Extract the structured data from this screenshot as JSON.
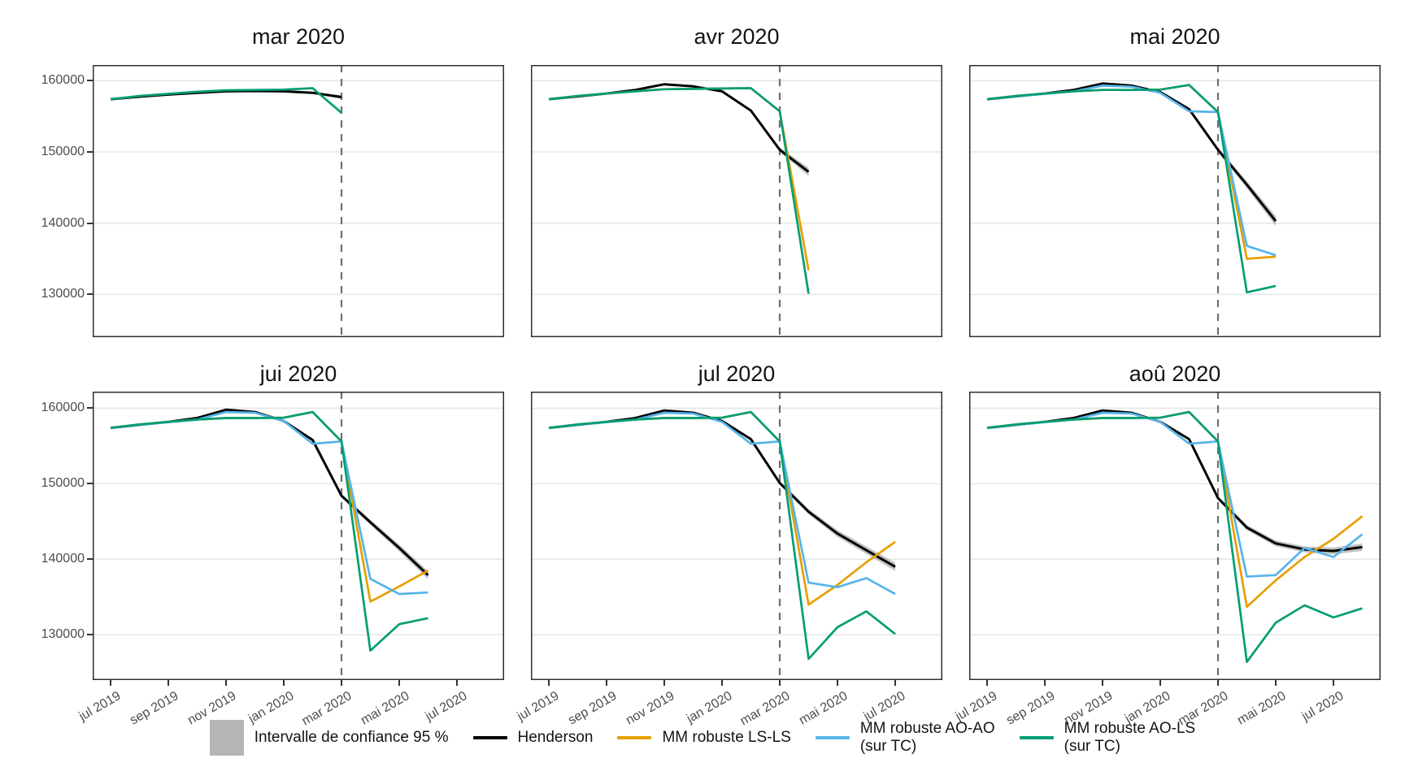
{
  "figure": {
    "y_domain": [
      124000,
      162200
    ],
    "y_axis": {
      "ticks": [
        "160000",
        "150000",
        "140000",
        "130000"
      ],
      "tick_values": [
        160000,
        150000,
        140000,
        130000
      ]
    },
    "x_axis": {
      "tick_labels": [
        "jul 2019",
        "sep 2019",
        "nov 2019",
        "jan 2020",
        "mar 2020",
        "mai 2020",
        "jul 2020"
      ],
      "tick_month_indices": [
        0,
        2,
        4,
        6,
        8,
        10,
        12
      ]
    },
    "reference_line_month_index": 8
  },
  "series_meta": {
    "ci": {
      "label": "Intervalle de confiance 95 %",
      "color": "#b5b5b5"
    },
    "henderson": {
      "label": "Henderson",
      "color": "#000000"
    },
    "ls_ls": {
      "label": "MM robuste LS-LS",
      "color": "#E69F00"
    },
    "ao_ao": {
      "label": "MM robuste AO-AO",
      "label2": "(sur TC)",
      "color": "#56B4E9"
    },
    "ao_ls": {
      "label": "MM robuste AO-LS",
      "label2": "(sur TC)",
      "color": "#009E73"
    }
  },
  "legend": {
    "items": [
      {
        "id": "ci",
        "type": "square",
        "label": "Intervalle de confiance 95 %"
      },
      {
        "id": "henderson",
        "type": "line",
        "label": "Henderson"
      },
      {
        "id": "ls_ls",
        "type": "line",
        "label": "MM robuste LS-LS"
      },
      {
        "id": "ao_ao",
        "type": "line",
        "label": "MM robuste AO-AO",
        "label2": "(sur TC)"
      },
      {
        "id": "ao_ls",
        "type": "line",
        "label": "MM robuste AO-LS",
        "label2": "(sur TC)"
      }
    ]
  },
  "chart_data": [
    {
      "type": "line",
      "title": "mar 2020",
      "x_start_label": "jul 2019",
      "series": {
        "henderson": [
          157400,
          157750,
          158050,
          158300,
          158500,
          158550,
          158500,
          158300,
          157700
        ],
        "ci_half": [
          0,
          0,
          0,
          0,
          0,
          0,
          0,
          100,
          250
        ],
        "ls_ls": null,
        "ao_ao": null,
        "ao_ls": [
          157400,
          157850,
          158150,
          158450,
          158650,
          158700,
          158750,
          158950,
          155500
        ]
      }
    },
    {
      "type": "line",
      "title": "avr 2020",
      "x_start_label": "jul 2019",
      "series": {
        "henderson": [
          157400,
          157800,
          158200,
          158700,
          159500,
          159200,
          158500,
          155800,
          150300,
          147200
        ],
        "ci_half": [
          0,
          0,
          0,
          0,
          0,
          0,
          0,
          150,
          300,
          600
        ],
        "ls_ls": [
          157400,
          157850,
          158200,
          158500,
          158800,
          158850,
          158900,
          158950,
          155700,
          133400
        ],
        "ao_ao": null,
        "ao_ls": [
          157400,
          157850,
          158200,
          158500,
          158800,
          158850,
          158900,
          158950,
          155700,
          130100
        ]
      }
    },
    {
      "type": "line",
      "title": "mai 2020",
      "x_start_label": "jul 2019",
      "series": {
        "henderson": [
          157400,
          157800,
          158200,
          158700,
          159600,
          159300,
          158400,
          156000,
          150300,
          145400,
          140300
        ],
        "ci_half": [
          0,
          0,
          0,
          0,
          0,
          0,
          0,
          150,
          300,
          500,
          700
        ],
        "ls_ls": [
          157400,
          157850,
          158200,
          158500,
          158700,
          158700,
          158750,
          159400,
          155600,
          135000,
          135300
        ],
        "ao_ao": [
          157400,
          157800,
          158150,
          158500,
          159300,
          159150,
          158300,
          155700,
          155600,
          136800,
          135500
        ],
        "ao_ls": [
          157400,
          157850,
          158200,
          158500,
          158700,
          158700,
          158750,
          159400,
          155600,
          130300,
          131200
        ]
      }
    },
    {
      "type": "line",
      "title": "jui 2020",
      "x_start_label": "jul 2019",
      "series": {
        "henderson": [
          157400,
          157800,
          158200,
          158700,
          159800,
          159500,
          158300,
          155800,
          148400,
          144900,
          141500,
          137900
        ],
        "ci_half": [
          0,
          0,
          0,
          0,
          0,
          0,
          0,
          150,
          250,
          350,
          450,
          550
        ],
        "ls_ls": [
          157400,
          157850,
          158200,
          158500,
          158700,
          158700,
          158750,
          159500,
          155600,
          134400,
          136400,
          138500
        ],
        "ao_ao": [
          157400,
          157800,
          158150,
          158500,
          159500,
          159400,
          158300,
          155300,
          155600,
          137400,
          135400,
          135600
        ],
        "ao_ls": [
          157400,
          157850,
          158200,
          158500,
          158700,
          158700,
          158750,
          159500,
          155600,
          127900,
          131400,
          132200
        ]
      }
    },
    {
      "type": "line",
      "title": "jul 2020",
      "x_start_label": "jul 2019",
      "series": {
        "henderson": [
          157400,
          157800,
          158200,
          158700,
          159700,
          159400,
          158300,
          155900,
          150100,
          146300,
          143400,
          141200,
          139000
        ],
        "ci_half": [
          0,
          0,
          0,
          0,
          0,
          0,
          0,
          150,
          250,
          350,
          450,
          500,
          550
        ],
        "ls_ls": [
          157400,
          157850,
          158200,
          158500,
          158700,
          158700,
          158750,
          159500,
          155600,
          134000,
          136600,
          139600,
          142300
        ],
        "ao_ao": [
          157400,
          157800,
          158150,
          158500,
          159400,
          159300,
          158200,
          155300,
          155600,
          136900,
          136300,
          137500,
          135400
        ],
        "ao_ls": [
          157400,
          157850,
          158200,
          158500,
          158700,
          158700,
          158750,
          159500,
          155600,
          126800,
          131000,
          133100,
          130100
        ]
      }
    },
    {
      "type": "line",
      "title": "aoû 2020",
      "x_start_label": "jul 2019",
      "series": {
        "henderson": [
          157400,
          157800,
          158200,
          158700,
          159700,
          159400,
          158200,
          155900,
          148100,
          144200,
          142100,
          141300,
          141100,
          141600
        ],
        "ci_half": [
          0,
          0,
          0,
          0,
          0,
          0,
          0,
          150,
          250,
          350,
          400,
          400,
          450,
          500
        ],
        "ls_ls": [
          157400,
          157850,
          158200,
          158500,
          158700,
          158700,
          158750,
          159500,
          155600,
          133700,
          137200,
          140300,
          142700,
          145700
        ],
        "ao_ao": [
          157400,
          157800,
          158150,
          158500,
          159400,
          159300,
          158200,
          155300,
          155600,
          137700,
          137900,
          141500,
          140300,
          143300
        ],
        "ao_ls": [
          157400,
          157850,
          158200,
          158500,
          158700,
          158700,
          158750,
          159500,
          155600,
          126400,
          131600,
          133900,
          132300,
          133500
        ]
      }
    }
  ]
}
